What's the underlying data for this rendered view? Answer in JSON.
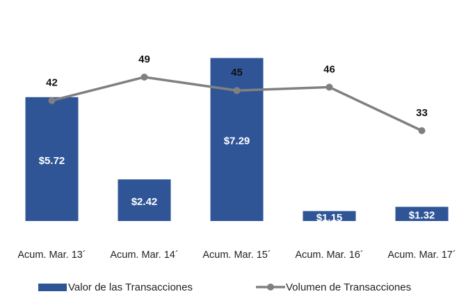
{
  "chart_data": {
    "type": "bar-line",
    "categories": [
      "Acum. Mar. 13´",
      "Acum. Mar. 14´",
      "Acum. Mar. 15´",
      "Acum. Mar. 16´",
      "Acum. Mar. 17´"
    ],
    "series": [
      {
        "name": "Valor de las Transacciones",
        "type": "bar",
        "color": "#2f5597",
        "values": [
          5.72,
          2.42,
          7.29,
          1.15,
          1.32
        ],
        "value_labels": [
          "$5.72",
          "$2.42",
          "$7.29",
          "$1.15",
          "$1.32"
        ]
      },
      {
        "name": "Volumen de Transacciones",
        "type": "line",
        "color": "#808080",
        "axis": "y2",
        "values": [
          42,
          49,
          45,
          46,
          33
        ]
      }
    ],
    "ylim": [
      0.75,
      8.0
    ],
    "y2lim": [
      6,
      60
    ],
    "grid": false,
    "legend": "bottom"
  }
}
